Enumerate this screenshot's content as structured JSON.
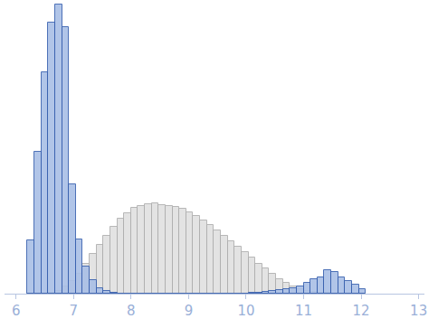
{
  "chart_data": {
    "type": "histogram",
    "bins": [
      6.2,
      6.32,
      6.44,
      6.56,
      6.68,
      6.8,
      6.92,
      7.04,
      7.16,
      7.28,
      7.4,
      7.52,
      7.64,
      7.76,
      7.88,
      8.0,
      8.12,
      8.24,
      8.36,
      8.48,
      8.6,
      8.72,
      8.84,
      8.96,
      9.08,
      9.2,
      9.32,
      9.44,
      9.56,
      9.68,
      9.8,
      9.92,
      10.04,
      10.16,
      10.28,
      10.4,
      10.52,
      10.64,
      10.76,
      10.88,
      11.0,
      11.12,
      11.24,
      11.36,
      11.48,
      11.6,
      11.72,
      11.84,
      11.96,
      12.08
    ],
    "series": [
      {
        "color": "#e0e0e0",
        "values": [
          0,
          0,
          0,
          1,
          3,
          8,
          14,
          22,
          34,
          45,
          55,
          65,
          75,
          84,
          90,
          96,
          98,
          101,
          102,
          100,
          98,
          97,
          95,
          91,
          87,
          82,
          77,
          71,
          65,
          59,
          53,
          47,
          41,
          34,
          28,
          22,
          16,
          12,
          8,
          5,
          3,
          2,
          1,
          1,
          0,
          0,
          0,
          0,
          0
        ]
      },
      {
        "color": "#a9bfe6",
        "values": [
          60,
          159,
          249,
          305,
          325,
          300,
          123,
          61,
          30,
          15,
          6,
          3,
          1,
          0,
          0,
          0,
          0,
          0,
          0,
          0,
          0,
          0,
          0,
          0,
          0,
          0,
          0,
          0,
          0,
          0,
          0,
          0,
          1,
          1,
          2,
          3,
          4,
          5,
          6,
          8,
          12,
          16,
          18,
          26,
          24,
          18,
          14,
          10,
          5
        ]
      }
    ],
    "xlim": [
      5.8,
      13.1
    ],
    "xticks": [
      6,
      7,
      8,
      9,
      10,
      11,
      12,
      13
    ],
    "ylim": [
      0,
      330
    ],
    "tick_labels": "x",
    "grid": false
  }
}
